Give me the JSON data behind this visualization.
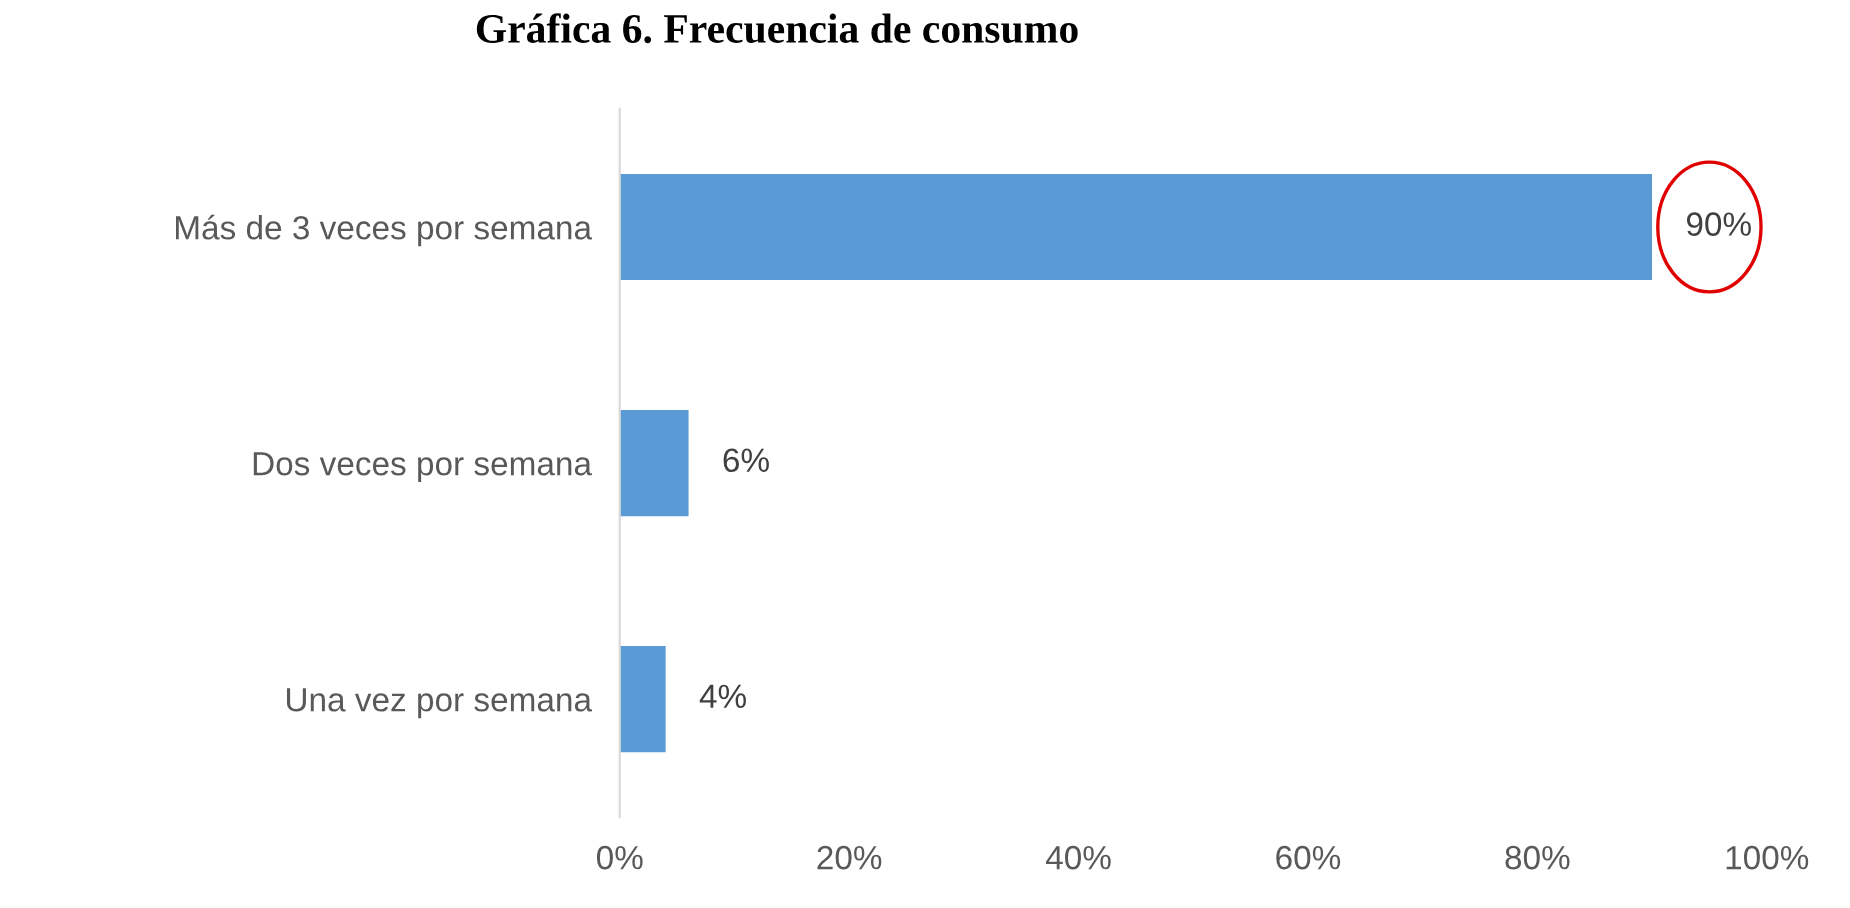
{
  "chart_data": {
    "type": "bar",
    "orientation": "horizontal",
    "title": "Gráfica 6. Frecuencia de consumo",
    "categories": [
      "Más de 3 veces por semana",
      "Dos veces por semana",
      "Una vez por semana"
    ],
    "values": [
      90,
      6,
      4
    ],
    "value_labels": [
      "90%",
      "6%",
      "4%"
    ],
    "color": "#5b9bd5",
    "xlim": [
      0,
      100
    ],
    "xticks": [
      {
        "value": 0,
        "label": "0%"
      },
      {
        "value": 20,
        "label": "20%"
      },
      {
        "value": 40,
        "label": "40%"
      },
      {
        "value": 60,
        "label": "60%"
      },
      {
        "value": 80,
        "label": "80%"
      },
      {
        "value": 100,
        "label": "100%"
      }
    ],
    "grid": false,
    "legend": false
  }
}
